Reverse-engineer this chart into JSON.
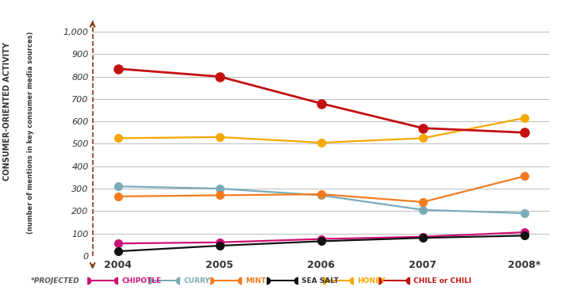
{
  "years": [
    2004,
    2005,
    2006,
    2007,
    2008
  ],
  "year_labels": [
    "2004",
    "2005",
    "2006",
    "2007",
    "2008*"
  ],
  "series_order": [
    "CHIPOTLE",
    "CURRY",
    "MINT",
    "SEA SALT",
    "HONEY",
    "CHILE or CHILI"
  ],
  "series": {
    "CHIPOTLE": {
      "values": [
        55,
        60,
        75,
        85,
        105
      ],
      "color": "#cc1177",
      "lw": 1.6
    },
    "CURRY": {
      "values": [
        310,
        300,
        270,
        205,
        190
      ],
      "color": "#7aacb8",
      "lw": 1.6
    },
    "MINT": {
      "values": [
        265,
        270,
        275,
        240,
        355
      ],
      "color": "#f47c20",
      "lw": 1.6
    },
    "SEA SALT": {
      "values": [
        20,
        45,
        65,
        80,
        90
      ],
      "color": "#111111",
      "lw": 1.6
    },
    "HONEY": {
      "values": [
        525,
        530,
        505,
        525,
        615
      ],
      "color": "#f5a800",
      "lw": 1.6
    },
    "CHILE or CHILI": {
      "values": [
        835,
        800,
        680,
        570,
        550
      ],
      "color": "#c41010",
      "lw": 2.0
    }
  },
  "ylabel_top": "CONSUMER-ORIENTED ACTIVITY",
  "ylabel_bottom": "(number of mentions in key consumer media sources)",
  "ylim": [
    0,
    1050
  ],
  "ytick_vals": [
    0,
    100,
    200,
    300,
    400,
    500,
    600,
    700,
    800,
    900,
    1000
  ],
  "bg_color": "#ffffff",
  "grid_color": "#bbbbbb",
  "marker_size": 7,
  "arrow_color": "#8b3a0f",
  "axis_line_color": "#8b3a0f",
  "xticklabel_color": "#333333",
  "yticklabel_color": "#333333",
  "legend_note": "*PROJECTED",
  "legend_items": [
    {
      "label": "CHIPOTLE",
      "color": "#cc1177",
      "text_color": "#cc1177"
    },
    {
      "label": "CURRY",
      "color": "#7aacb8",
      "text_color": "#7aacb8"
    },
    {
      "label": "MINT",
      "color": "#f47c20",
      "text_color": "#f47c20"
    },
    {
      "label": "SEA SALT",
      "color": "#111111",
      "text_color": "#333333"
    },
    {
      "label": "HONEY",
      "color": "#f5a800",
      "text_color": "#f5a800"
    },
    {
      "label": "CHILE or CHILI",
      "color": "#c41010",
      "text_color": "#c41010"
    }
  ]
}
